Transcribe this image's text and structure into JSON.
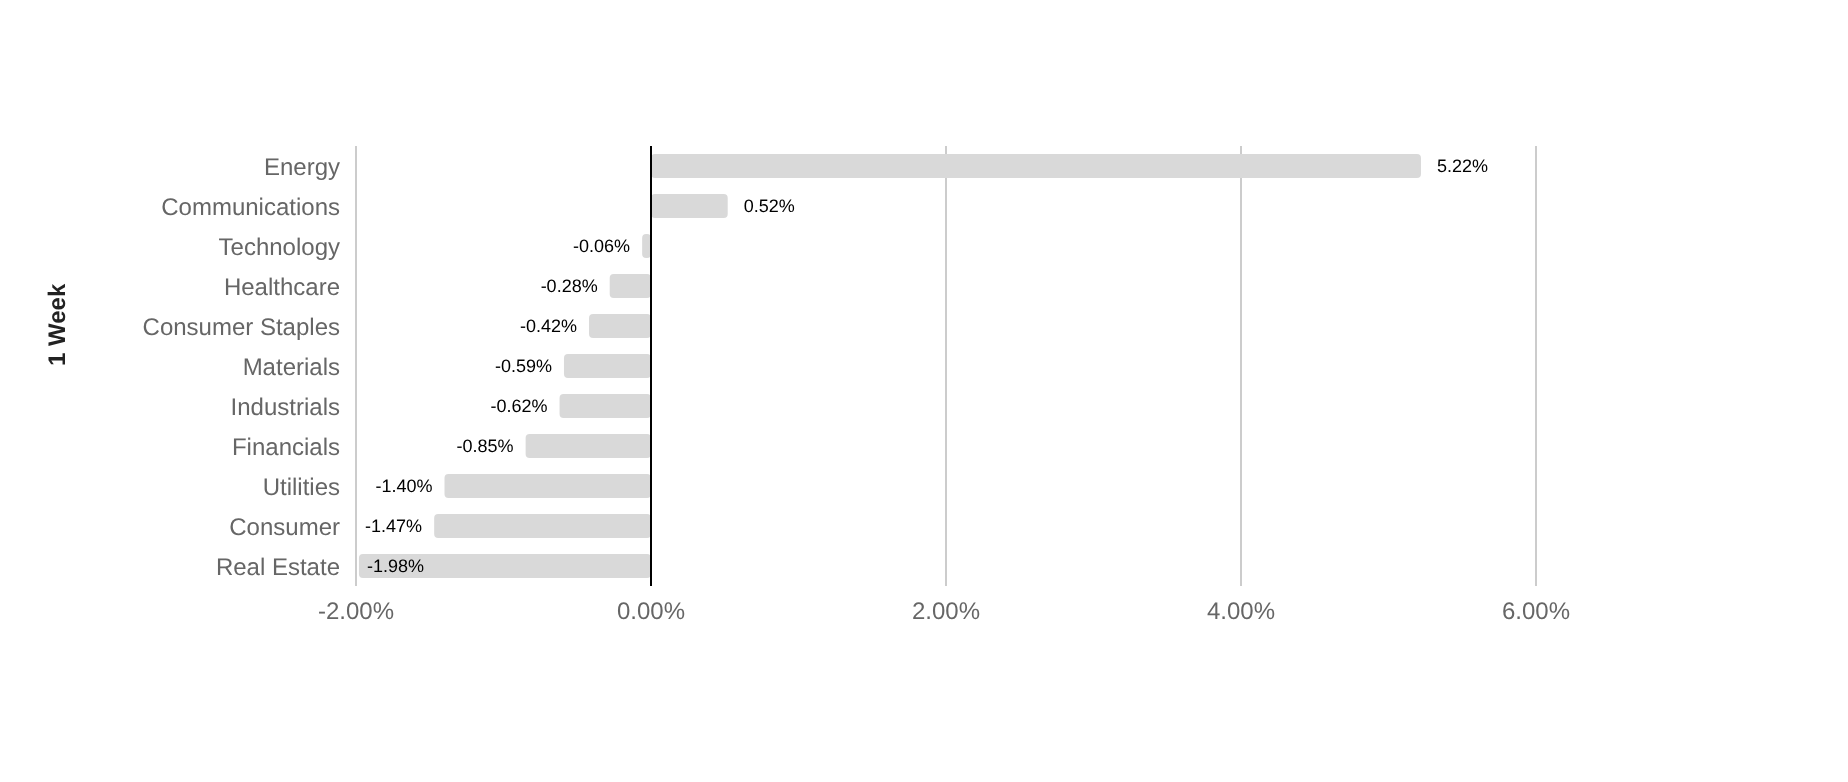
{
  "chart_data": {
    "type": "bar",
    "orientation": "horizontal",
    "ylabel": "1 Week",
    "categories": [
      "Energy",
      "Communications",
      "Technology",
      "Healthcare",
      "Consumer Staples",
      "Materials",
      "Industrials",
      "Financials",
      "Utilities",
      "Consumer",
      "Real Estate"
    ],
    "values": [
      5.22,
      0.52,
      -0.06,
      -0.28,
      -0.42,
      -0.59,
      -0.62,
      -0.85,
      -1.4,
      -1.47,
      -1.98
    ],
    "value_labels": [
      "5.22%",
      "0.52%",
      "-0.06%",
      "-0.28%",
      "-0.42%",
      "-0.59%",
      "-0.62%",
      "-0.85%",
      "-1.40%",
      "-1.47%",
      "-1.98%"
    ],
    "color": "#d9d9d9",
    "xlim": [
      -2,
      6
    ],
    "xticks": [
      {
        "value": -2,
        "label": "-2.00%"
      },
      {
        "value": 0,
        "label": "0.00%"
      },
      {
        "value": 2,
        "label": "2.00%"
      },
      {
        "value": 4,
        "label": "4.00%"
      },
      {
        "value": 6,
        "label": "6.00%"
      }
    ],
    "grid": "x"
  }
}
